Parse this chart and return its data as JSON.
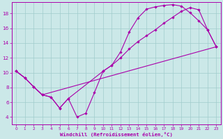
{
  "xlabel": "Windchill (Refroidissement éolien,°C)",
  "background_color": "#cbe8e8",
  "grid_color": "#a0cccc",
  "line_color": "#aa00aa",
  "xlim": [
    -0.5,
    23.5
  ],
  "ylim": [
    3.0,
    19.5
  ],
  "xticks": [
    0,
    1,
    2,
    3,
    4,
    5,
    6,
    7,
    8,
    9,
    10,
    11,
    12,
    13,
    14,
    15,
    16,
    17,
    18,
    19,
    20,
    21,
    22,
    23
  ],
  "yticks": [
    4,
    6,
    8,
    10,
    12,
    14,
    16,
    18
  ],
  "curve1_x": [
    0,
    1,
    2,
    3,
    4,
    5,
    6,
    7,
    8,
    9,
    10,
    11,
    12,
    13,
    14,
    15,
    16,
    17,
    18,
    19,
    20,
    21,
    22,
    23
  ],
  "curve1_y": [
    10.2,
    9.3,
    8.1,
    7.0,
    6.7,
    5.2,
    6.5,
    4.0,
    4.5,
    7.3,
    10.2,
    11.0,
    12.8,
    15.5,
    17.4,
    18.6,
    18.9,
    19.1,
    19.2,
    19.0,
    18.1,
    17.0,
    15.8,
    13.5
  ],
  "curve2_x": [
    0,
    1,
    2,
    3,
    4,
    5,
    6,
    10,
    11,
    12,
    13,
    14,
    15,
    16,
    17,
    18,
    19,
    20,
    21,
    22,
    23
  ],
  "curve2_y": [
    10.2,
    9.3,
    8.1,
    7.0,
    6.7,
    5.2,
    6.5,
    10.2,
    11.0,
    12.0,
    13.2,
    14.2,
    15.0,
    15.8,
    16.7,
    17.5,
    18.3,
    18.8,
    18.5,
    15.8,
    13.5
  ],
  "curve3_x": [
    0,
    1,
    2,
    3,
    23
  ],
  "curve3_y": [
    10.2,
    9.3,
    8.1,
    7.0,
    13.5
  ]
}
